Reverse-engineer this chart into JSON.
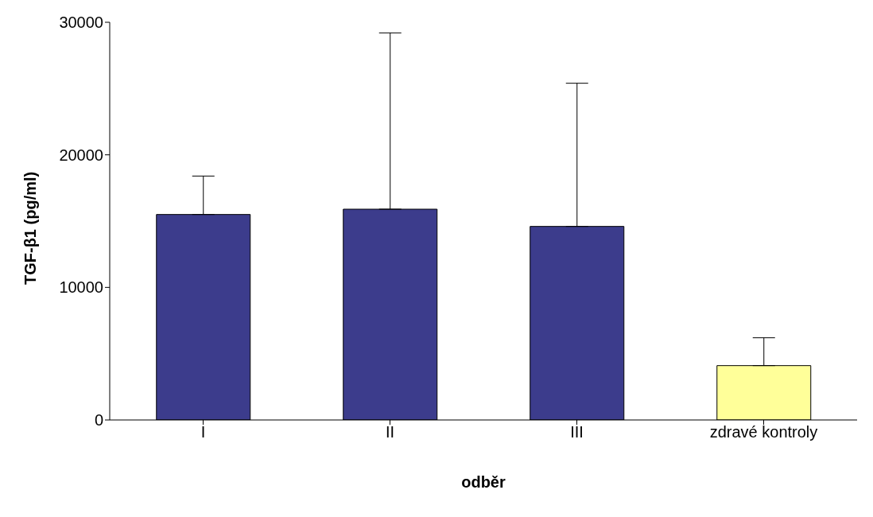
{
  "chart_data": {
    "type": "bar",
    "categories": [
      "I",
      "II",
      "III",
      "zdravé kontroly"
    ],
    "values": [
      15500,
      15900,
      14600,
      4100
    ],
    "colors": [
      "#3c3c8c",
      "#3c3c8c",
      "#3c3c8c",
      "#ffff99"
    ],
    "errors": [
      [
        15500,
        18400
      ],
      [
        15900,
        29200
      ],
      [
        14600,
        25400
      ],
      [
        4100,
        6200
      ]
    ],
    "xlabel": "odběr",
    "ylabel": "TGF-β1 (pg/ml)",
    "ylim": [
      0,
      30000
    ],
    "yticks": [
      0,
      10000,
      20000,
      30000
    ],
    "grid": false,
    "legend": false
  }
}
